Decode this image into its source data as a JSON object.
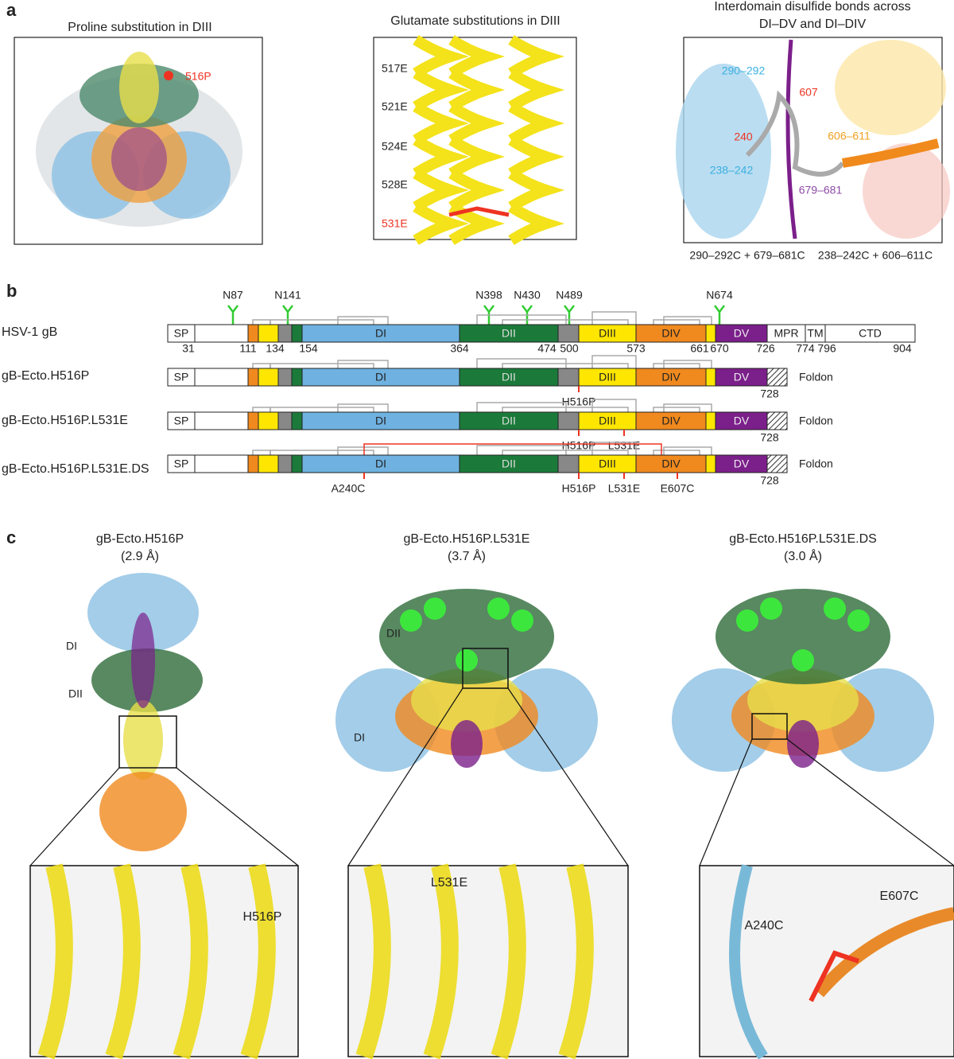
{
  "panel_a": {
    "label": "a",
    "proline": {
      "title": "Proline substitution in DIII",
      "label": "516P"
    },
    "glutamate": {
      "title": "Glutamate substitutions in DIII",
      "residues": [
        "517E",
        "521E",
        "524E",
        "528E",
        "531E"
      ]
    },
    "disulfide": {
      "title_lines": [
        "Interdomain disulfide bonds across",
        "DI–DV and DI–DIV"
      ],
      "labels": [
        "290–292",
        "607",
        "240",
        "606–611",
        "238–242",
        "679–681"
      ],
      "captions": [
        "290–292C + 679–681C",
        "238–242C + 606–611C"
      ]
    }
  },
  "panel_b": {
    "label": "b",
    "glycans": [
      "N87",
      "N141",
      "N398",
      "N430",
      "N489",
      "N674"
    ],
    "rows": [
      {
        "name": "HSV-1 gB",
        "domains": [
          "SP",
          "DI",
          "DII",
          "DIII",
          "DIV",
          "DV",
          "MPR",
          "TM",
          "CTD"
        ],
        "positions": [
          "31",
          "111",
          "134",
          "154",
          "364",
          "474",
          "500",
          "573",
          "661",
          "670",
          "726",
          "774",
          "796",
          "904"
        ]
      },
      {
        "name": "gB-Ecto.H516P",
        "domains": [
          "SP",
          "DI",
          "DII",
          "DIII",
          "DIV",
          "DV"
        ],
        "end": "728",
        "tag": "Foldon",
        "mutations": [
          "H516P"
        ]
      },
      {
        "name": "gB-Ecto.H516P.L531E",
        "domains": [
          "SP",
          "DI",
          "DII",
          "DIII",
          "DIV",
          "DV"
        ],
        "end": "728",
        "tag": "Foldon",
        "mutations": [
          "H516P",
          "L531E"
        ]
      },
      {
        "name": "gB-Ecto.H516P.L531E.DS",
        "domains": [
          "SP",
          "DI",
          "DII",
          "DIII",
          "DIV",
          "DV"
        ],
        "end": "728",
        "tag": "Foldon",
        "mutations": [
          "A240C",
          "H516P",
          "L531E",
          "E607C"
        ]
      }
    ]
  },
  "panel_c": {
    "label": "c",
    "structures": [
      {
        "title": "gB-Ecto.H516P",
        "resolution": "(2.9 Å)",
        "domain_labels": [
          "DI",
          "DII"
        ],
        "mutation_labels": [
          "H516P"
        ]
      },
      {
        "title": "gB-Ecto.H516P.L531E",
        "resolution": "(3.7 Å)",
        "domain_labels": [
          "DII",
          "DI"
        ],
        "mutation_labels": [
          "L531E"
        ]
      },
      {
        "title": "gB-Ecto.H516P.L531E.DS",
        "resolution": "(3.0 Å)",
        "domain_labels": [],
        "mutation_labels": [
          "E607C",
          "A240C"
        ]
      }
    ]
  }
}
